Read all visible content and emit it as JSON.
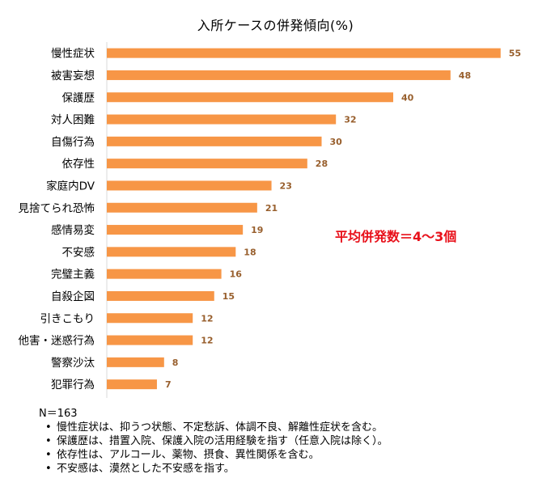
{
  "chart_data": {
    "type": "bar",
    "orientation": "horizontal",
    "title": "入所ケースの併発傾向(%)",
    "categories": [
      "慢性症状",
      "被害妄想",
      "保護歴",
      "対人困難",
      "自傷行為",
      "依存性",
      "家庭内DV",
      "見捨てられ恐怖",
      "感情易変",
      "不安感",
      "完璧主義",
      "自殺企図",
      "引きこもり",
      "他害・迷惑行為",
      "警察沙汰",
      "犯罪行為"
    ],
    "values": [
      55,
      48,
      40,
      32,
      30,
      28,
      23,
      21,
      19,
      18,
      16,
      15,
      12,
      12,
      8,
      7
    ],
    "xlim": [
      0,
      60
    ],
    "grid": false,
    "bar_color": "#f79646",
    "label_color": "#985f2d",
    "annotation": "平均併発数＝4～3個"
  },
  "notes": {
    "n": "N＝163",
    "bullets": [
      "慢性症状は、抑うつ状態、不定愁訴、体調不良、解離性症状を含む。",
      "保護歴は、措置入院、保護入院の活用経験を指す（任意入院は除く）。",
      "依存性は、アルコール、薬物、摂食、異性関係を含む。",
      "不安感は、漠然とした不安感を指す。"
    ]
  }
}
